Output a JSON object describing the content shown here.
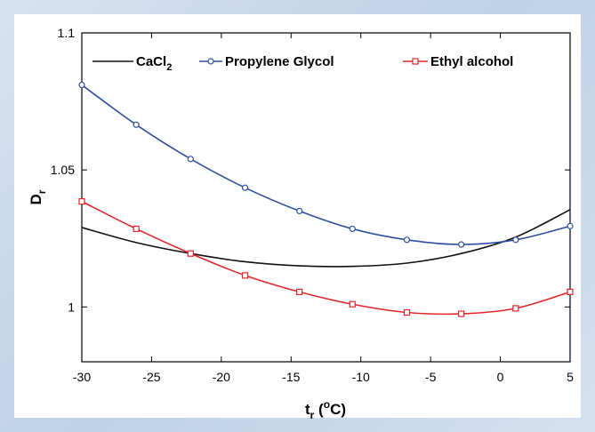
{
  "chart_data": {
    "type": "line",
    "xlabel": "t",
    "xlabel_sub": "r",
    "xlabel_unit": "(",
    "xlabel_sup": "o",
    "xlabel_unit_end": "C)",
    "ylabel": "D",
    "ylabel_sub": "r",
    "xlim": [
      -30,
      5
    ],
    "ylim": [
      0.98,
      1.1
    ],
    "xticks": [
      -30,
      -25,
      -20,
      -15,
      -10,
      -5,
      0,
      5
    ],
    "xtick_labels": [
      "-30",
      "-25",
      "-20",
      "-15",
      "-10",
      "-5",
      "0",
      "5"
    ],
    "yticks": [
      1.0,
      1.05,
      1.1
    ],
    "ytick_labels": [
      "1",
      "1.05",
      "1.1"
    ],
    "grid": false,
    "legend_position": "top",
    "series": [
      {
        "name": "CaCl",
        "name_sub": "2",
        "color": "#111111",
        "marker": "none",
        "x": [
          -30,
          -26.1,
          -22.2,
          -18.3,
          -14.4,
          -10.6,
          -6.7,
          -2.8,
          1.1,
          5
        ],
        "y": [
          1.029,
          1.0235,
          1.0195,
          1.0165,
          1.015,
          1.0148,
          1.016,
          1.0195,
          1.0255,
          1.0355
        ]
      },
      {
        "name": "Propylene Glycol",
        "color": "#2d4f9e",
        "marker": "circle",
        "x": [
          -30,
          -26.1,
          -22.2,
          -18.3,
          -14.4,
          -10.6,
          -6.7,
          -2.8,
          1.1,
          5
        ],
        "y": [
          1.081,
          1.0665,
          1.054,
          1.0435,
          1.035,
          1.0285,
          1.0245,
          1.0228,
          1.0245,
          1.0295
        ]
      },
      {
        "name": "Ethyl alcohol",
        "color": "#e0262b",
        "marker": "square",
        "x": [
          -30,
          -26.1,
          -22.2,
          -18.3,
          -14.4,
          -10.6,
          -6.7,
          -2.8,
          1.1,
          5
        ],
        "y": [
          1.0385,
          1.0285,
          1.0195,
          1.0115,
          1.0055,
          1.001,
          0.998,
          0.9975,
          0.9995,
          1.0055
        ]
      }
    ]
  }
}
